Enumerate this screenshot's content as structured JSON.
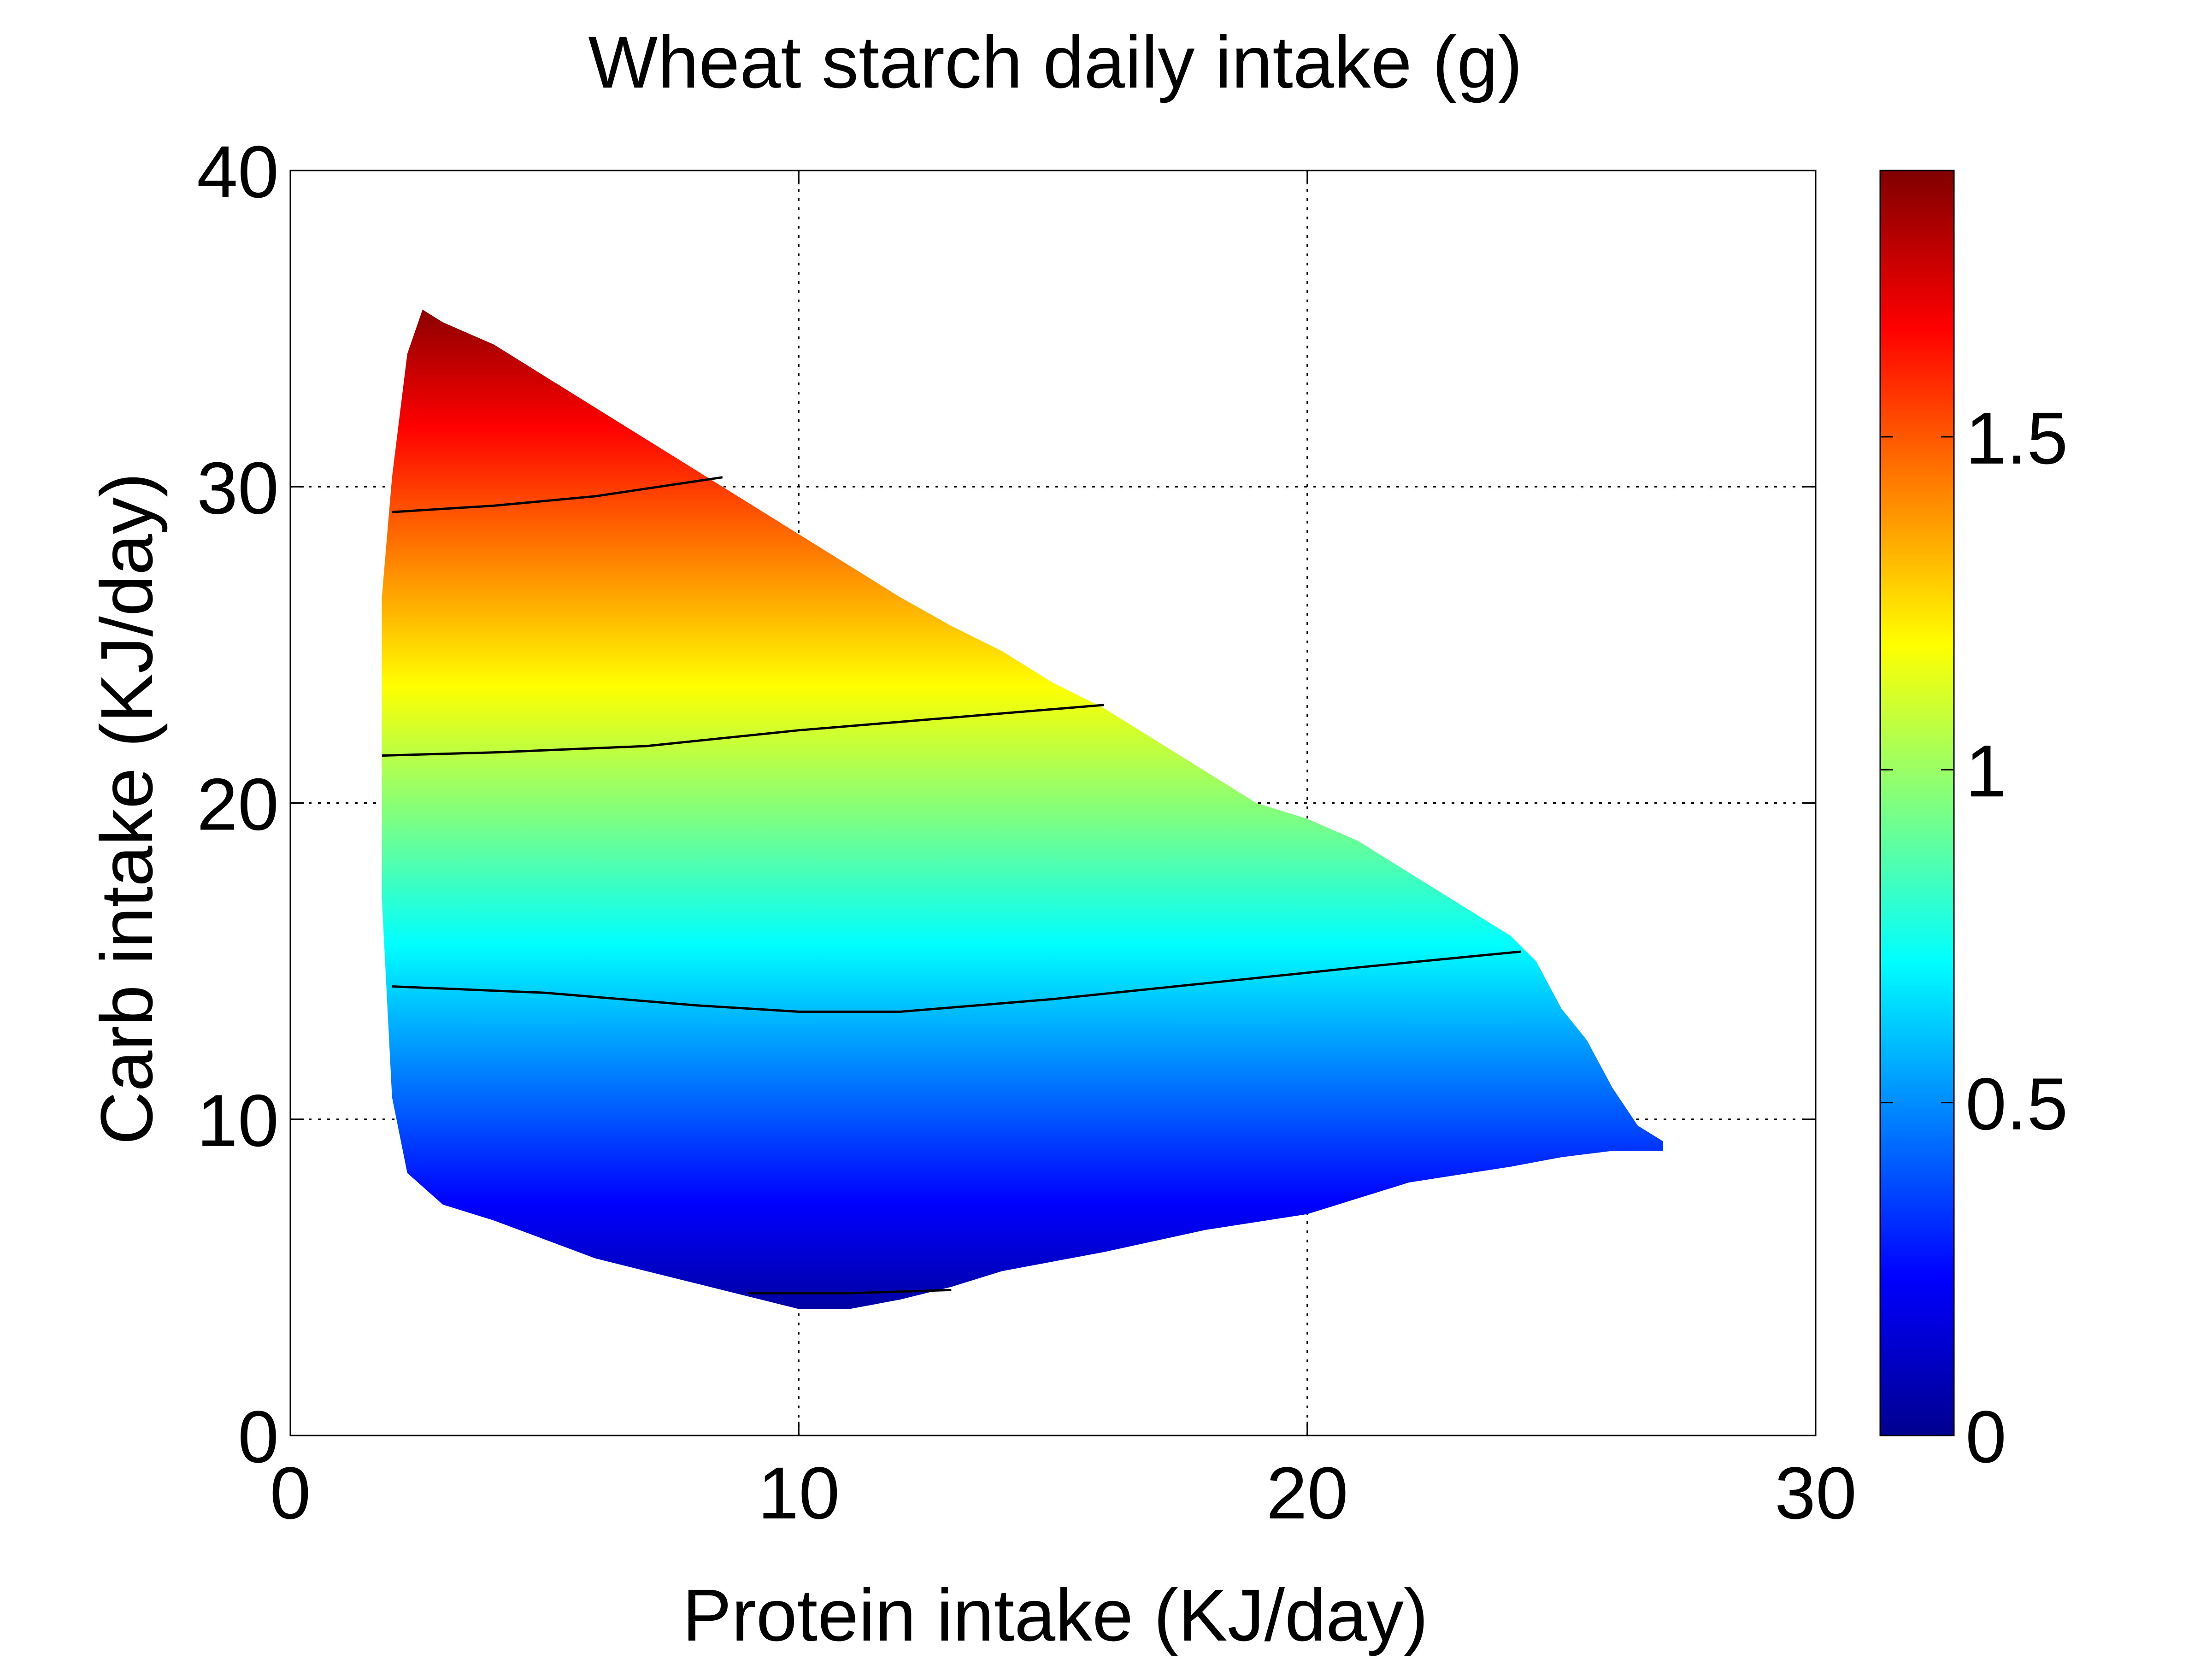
{
  "chart_data": {
    "type": "heatmap",
    "title": "Wheat starch daily intake (g)",
    "xlabel": "Protein intake (KJ/day)",
    "ylabel": "Carb intake (KJ/day)",
    "xlim": [
      0,
      30
    ],
    "ylim": [
      0,
      40
    ],
    "xticks": [
      0,
      10,
      20,
      30
    ],
    "yticks": [
      0,
      10,
      20,
      30,
      40
    ],
    "grid": true,
    "colormap": "jet",
    "colorbar": {
      "range": [
        0,
        1.9
      ],
      "ticks": [
        0,
        0.5,
        1,
        1.5
      ],
      "tick_labels": [
        "0",
        "0.5",
        "1",
        "1.5"
      ]
    },
    "surface": {
      "value_at_bottom_y": 4,
      "value_at_top_y": 35.6,
      "value_min": 0,
      "value_max": 1.9,
      "region_boundary": {
        "upper_edge": [
          [
            1.8,
            26.5
          ],
          [
            2.0,
            30.3
          ],
          [
            2.3,
            34.2
          ],
          [
            2.6,
            35.6
          ],
          [
            3.0,
            35.2
          ],
          [
            4.0,
            34.5
          ],
          [
            5.0,
            33.5
          ],
          [
            6.0,
            32.5
          ],
          [
            7.0,
            31.5
          ],
          [
            8.0,
            30.5
          ],
          [
            9.0,
            29.5
          ],
          [
            10.0,
            28.5
          ],
          [
            12.0,
            26.5
          ],
          [
            13.0,
            25.6
          ],
          [
            14.0,
            24.8
          ],
          [
            15.0,
            23.8
          ],
          [
            16.0,
            23.0
          ],
          [
            17.0,
            22.0
          ],
          [
            18.0,
            21.0
          ],
          [
            19.0,
            20.0
          ],
          [
            20.0,
            19.5
          ],
          [
            21.0,
            18.8
          ],
          [
            22.0,
            17.8
          ],
          [
            23.0,
            16.8
          ],
          [
            24.0,
            15.8
          ],
          [
            24.5,
            15.0
          ],
          [
            25.0,
            13.5
          ],
          [
            25.5,
            12.5
          ],
          [
            26.0,
            11.0
          ],
          [
            26.5,
            9.8
          ],
          [
            27.0,
            9.3
          ]
        ],
        "lower_edge": [
          [
            27.0,
            9.0
          ],
          [
            26.0,
            9.0
          ],
          [
            25.0,
            8.8
          ],
          [
            24.0,
            8.5
          ],
          [
            22.0,
            8.0
          ],
          [
            20.0,
            7.0
          ],
          [
            18.0,
            6.5
          ],
          [
            16.0,
            5.8
          ],
          [
            14.0,
            5.2
          ],
          [
            13.0,
            4.7
          ],
          [
            12.0,
            4.3
          ],
          [
            11.0,
            4.0
          ],
          [
            10.0,
            4.0
          ],
          [
            9.0,
            4.4
          ],
          [
            8.0,
            4.8
          ],
          [
            7.0,
            5.2
          ],
          [
            6.0,
            5.6
          ],
          [
            5.0,
            6.2
          ],
          [
            4.0,
            6.8
          ],
          [
            3.0,
            7.3
          ],
          [
            2.3,
            8.3
          ],
          [
            2.0,
            10.7
          ],
          [
            1.8,
            17.0
          ]
        ]
      }
    },
    "contours": [
      {
        "name": "contour-1",
        "points": [
          [
            2.0,
            29.2
          ],
          [
            4.0,
            29.4
          ],
          [
            6.0,
            29.7
          ],
          [
            8.5,
            30.3
          ]
        ]
      },
      {
        "name": "contour-2",
        "points": [
          [
            1.8,
            21.5
          ],
          [
            4.0,
            21.6
          ],
          [
            7.0,
            21.8
          ],
          [
            10.0,
            22.3
          ],
          [
            13.0,
            22.7
          ],
          [
            16.0,
            23.1
          ]
        ]
      },
      {
        "name": "contour-3",
        "points": [
          [
            2.0,
            14.2
          ],
          [
            5.0,
            14.0
          ],
          [
            8.0,
            13.6
          ],
          [
            10.0,
            13.4
          ],
          [
            12.0,
            13.4
          ],
          [
            15.0,
            13.8
          ],
          [
            18.0,
            14.3
          ],
          [
            21.0,
            14.8
          ],
          [
            24.2,
            15.3
          ]
        ]
      },
      {
        "name": "contour-4",
        "points": [
          [
            9.0,
            4.5
          ],
          [
            11.0,
            4.5
          ],
          [
            13.0,
            4.6
          ]
        ]
      }
    ]
  }
}
